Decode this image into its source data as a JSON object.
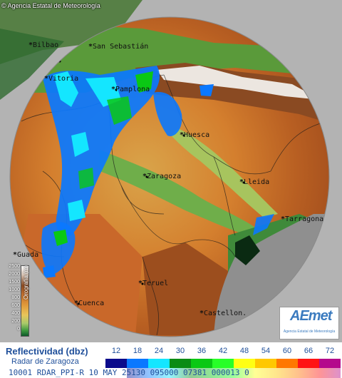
{
  "header": {
    "credit": "Agencia Estatal de Meteorología"
  },
  "map": {
    "cities": [
      {
        "id": "bilbao",
        "label": "Bilbao"
      },
      {
        "id": "san-sebastian",
        "label": "San Sebastián"
      },
      {
        "id": "vitoria",
        "label": "Vitoria"
      },
      {
        "id": "pamplona",
        "label": "Pamplona"
      },
      {
        "id": "huesca",
        "label": "Huesca"
      },
      {
        "id": "zaragoza",
        "label": "Zaragoza"
      },
      {
        "id": "lleida",
        "label": "Lleida"
      },
      {
        "id": "tarragona",
        "label": "Tarragona"
      },
      {
        "id": "guadalajara",
        "label": "Guada"
      },
      {
        "id": "teruel",
        "label": "Teruel"
      },
      {
        "id": "cuenca",
        "label": "Cuenca"
      },
      {
        "id": "castellon",
        "label": "Castellon."
      }
    ]
  },
  "orography_scale": {
    "title": "Orografía (m)",
    "ticks": [
      "2500",
      "2000",
      "1500",
      "1000",
      "800",
      "600",
      "400",
      "200",
      "0"
    ]
  },
  "logo": {
    "text": "AEmet",
    "subtitle": "Agencia Estatal de Meteorología"
  },
  "legend": {
    "title": "Reflectividad (dbz)",
    "subtitle": "Radar de Zaragoza",
    "scale": [
      {
        "value": "12",
        "color": "#0a0a8c"
      },
      {
        "value": "18",
        "color": "#0a78ff"
      },
      {
        "value": "24",
        "color": "#14e6ff"
      },
      {
        "value": "30",
        "color": "#0a8c14"
      },
      {
        "value": "36",
        "color": "#0ac814"
      },
      {
        "value": "42",
        "color": "#28ff28"
      },
      {
        "value": "48",
        "color": "#ffff14"
      },
      {
        "value": "54",
        "color": "#ffc800"
      },
      {
        "value": "60",
        "color": "#ff7800"
      },
      {
        "value": "66",
        "color": "#ff1414"
      },
      {
        "value": "72",
        "color": "#b40a8c"
      }
    ]
  },
  "status": {
    "text": "10001 RDAR_PPI-R  10 MAY 25130 095000 07381 000013 0"
  }
}
